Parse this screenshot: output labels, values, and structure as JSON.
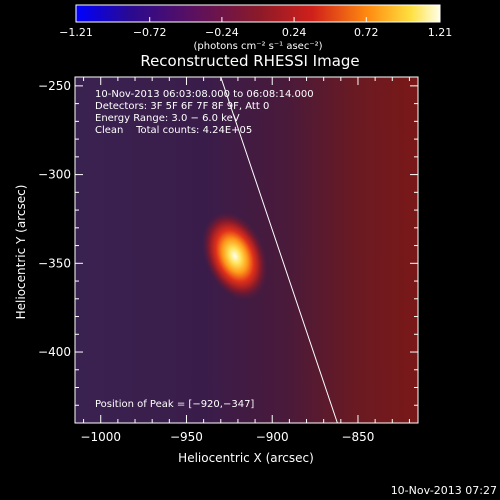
{
  "colors": {
    "background": "#000000",
    "foreground": "#ffffff",
    "colormap": [
      "#0000ff",
      "#3a0a78",
      "#5a1a5a",
      "#8a1a2a",
      "#c0302a",
      "#ff7a1a",
      "#ffd23a",
      "#ffffe0"
    ]
  },
  "chart_data": {
    "type": "heatmap",
    "title": "Reconstructed RHESSI Image",
    "xlabel": "Heliocentric X (arcsec)",
    "ylabel": "Heliocentric Y (arcsec)",
    "xlim": [
      -1015,
      -815
    ],
    "ylim": [
      -440,
      -245
    ],
    "xticks": [
      -1000,
      -950,
      -900,
      -850
    ],
    "xtick_labels": [
      "−1000",
      "−950",
      "−900",
      "−850"
    ],
    "yticks": [
      -250,
      -300,
      -350,
      -400
    ],
    "ytick_labels": [
      "−250",
      "−300",
      "−350",
      "−400"
    ],
    "colorbar": {
      "range": [
        -1.21,
        1.21
      ],
      "ticks": [
        -1.21,
        -0.72,
        -0.24,
        0.24,
        0.72,
        1.21
      ],
      "tick_labels": [
        "−1.21",
        "−0.72",
        "−0.24",
        "0.24",
        "0.72",
        "1.21"
      ],
      "units": "(photons cm⁻² s⁻¹ asec⁻²)"
    },
    "source": {
      "x": -920,
      "y": -347,
      "peak": 1.21
    },
    "limb_line": [
      [
        -930,
        -245
      ],
      [
        -862,
        -440
      ]
    ],
    "annotations": [
      "10-Nov-2013 06:03:08.000 to 06:08:14.000",
      "Detectors: 3F 5F 6F 7F 8F 9F, Att 0",
      "Energy Range: 3.0 − 6.0 keV",
      "Clean    Total counts: 4.24E+05"
    ],
    "peak_label": "Position of Peak = [−920,−347]"
  },
  "footer": {
    "timestamp": "10-Nov-2013 07:27"
  }
}
